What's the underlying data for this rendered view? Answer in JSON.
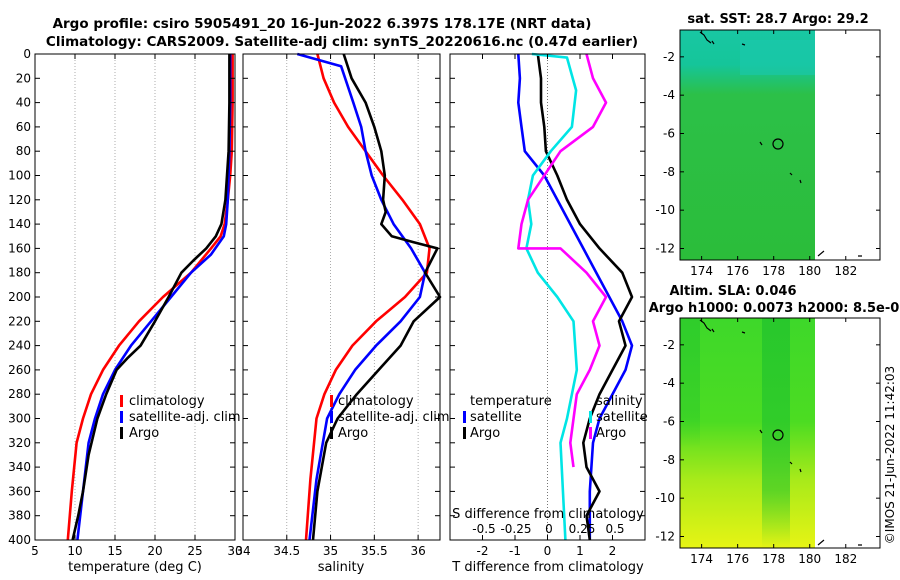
{
  "header": {
    "title_line1": "Argo profile: csiro 5905491_20 16-Jun-2022 6.397S 178.17E (NRT data)",
    "title_line2": "Climatology: CARS2009. Satellite-adj clim: synTS_20220616.nc (0.47d earlier)"
  },
  "chart_data": [
    {
      "id": "temperature",
      "type": "line",
      "xlabel": "temperature (deg C)",
      "ylabel": "",
      "xlim": [
        5,
        30
      ],
      "ylim": [
        400,
        0
      ],
      "xticks": [
        5,
        10,
        15,
        20,
        25,
        30
      ],
      "yticks": [
        0,
        20,
        40,
        60,
        80,
        100,
        120,
        140,
        160,
        180,
        200,
        220,
        240,
        260,
        280,
        300,
        320,
        340,
        360,
        380,
        400
      ],
      "grid": "vertical dotted",
      "legend_position": "lower-right",
      "series": [
        {
          "name": "climatology",
          "color": "#ff0000",
          "x": [
            29.7,
            29.7,
            29.6,
            29.4,
            29.1,
            28.7,
            28.2,
            27.0,
            24.5,
            21.0,
            18.0,
            15.5,
            13.5,
            12.0,
            11.0,
            10.2,
            9.6,
            9.1
          ],
          "y": [
            0,
            40,
            80,
            100,
            120,
            140,
            150,
            160,
            180,
            200,
            220,
            240,
            260,
            280,
            300,
            320,
            360,
            400
          ]
        },
        {
          "name": "satellite-adj. clim",
          "color": "#0000ff",
          "x": [
            29.4,
            29.4,
            29.3,
            29.2,
            29.1,
            28.9,
            28.6,
            27.0,
            24.5,
            22.0,
            19.5,
            17.0,
            15.0,
            13.5,
            12.5,
            11.7,
            11.0,
            10.3
          ],
          "y": [
            0,
            40,
            80,
            100,
            120,
            140,
            150,
            165,
            180,
            200,
            220,
            240,
            260,
            280,
            300,
            320,
            360,
            400
          ]
        },
        {
          "name": "Argo",
          "color": "#000000",
          "x": [
            29.3,
            29.3,
            29.2,
            29.0,
            28.8,
            28.3,
            27.6,
            26.4,
            24.8,
            23.3,
            21.7,
            20.0,
            18.2,
            16.6,
            15.2,
            13.9,
            12.8,
            11.7,
            11.0,
            10.4,
            9.7
          ],
          "y": [
            0,
            40,
            80,
            100,
            120,
            140,
            150,
            160,
            170,
            180,
            200,
            220,
            240,
            250,
            260,
            280,
            300,
            330,
            360,
            380,
            400
          ]
        }
      ]
    },
    {
      "id": "salinity",
      "type": "line",
      "xlabel": "salinity",
      "xlim": [
        34,
        36.25
      ],
      "ylim": [
        400,
        0
      ],
      "xticks": [
        34,
        34.5,
        35,
        35.5,
        36
      ],
      "grid": "vertical dotted",
      "legend_position": "lower-right",
      "series": [
        {
          "name": "climatology",
          "color": "#ff0000",
          "x": [
            34.85,
            34.92,
            35.04,
            35.2,
            35.4,
            35.6,
            35.82,
            36.02,
            36.13,
            36.1,
            35.85,
            35.52,
            35.25,
            35.06,
            34.93,
            34.84,
            34.77,
            34.72
          ],
          "y": [
            0,
            20,
            40,
            60,
            80,
            100,
            120,
            140,
            160,
            180,
            200,
            220,
            240,
            260,
            280,
            300,
            350,
            400
          ]
        },
        {
          "name": "satellite-adj. clim",
          "color": "#0000ff",
          "x": [
            34.62,
            35.12,
            35.26,
            35.35,
            35.4,
            35.47,
            35.58,
            35.72,
            35.92,
            36.08,
            36.02,
            35.8,
            35.52,
            35.28,
            35.1,
            34.96,
            34.84,
            34.76
          ],
          "y": [
            0,
            10,
            40,
            60,
            80,
            100,
            120,
            140,
            160,
            180,
            200,
            220,
            240,
            260,
            280,
            300,
            350,
            400
          ]
        },
        {
          "name": "Argo",
          "color": "#000000",
          "x": [
            35.15,
            35.24,
            35.4,
            35.5,
            35.58,
            35.62,
            35.6,
            35.63,
            35.58,
            35.7,
            35.95,
            36.22,
            36.08,
            36.25,
            35.95,
            35.8,
            35.55,
            35.3,
            35.08,
            34.95,
            34.85,
            34.8
          ],
          "y": [
            0,
            20,
            40,
            60,
            80,
            100,
            120,
            130,
            140,
            150,
            155,
            160,
            180,
            200,
            220,
            240,
            260,
            280,
            300,
            320,
            360,
            400
          ]
        }
      ]
    },
    {
      "id": "differences",
      "type": "line",
      "xlabel": "T difference from climatology",
      "xlabel_top": "S difference from climatology",
      "xlim": [
        -3,
        3
      ],
      "ylim": [
        400,
        0
      ],
      "xticks": [
        -2,
        -1,
        0,
        1,
        2
      ],
      "s_xticks_labels": [
        "-0.5",
        "-0.25",
        "0",
        "0.25",
        "0.5"
      ],
      "legend_temperature": {
        "title": "temperature",
        "entries": [
          "satellite",
          "Argo"
        ]
      },
      "legend_salinity": {
        "title": "salinity",
        "entries": [
          "satellite",
          "Argo"
        ]
      },
      "series": [
        {
          "name": "T satellite",
          "color": "#0000ff",
          "x": [
            -0.9,
            -0.85,
            -0.9,
            -0.8,
            -0.7,
            -0.1,
            0.3,
            0.7,
            1.1,
            1.5,
            1.9,
            2.3,
            2.6,
            2.4,
            2.0,
            1.6,
            1.4,
            1.3,
            1.3
          ],
          "y": [
            0,
            20,
            40,
            60,
            80,
            100,
            120,
            140,
            160,
            180,
            200,
            220,
            240,
            260,
            280,
            300,
            320,
            360,
            400
          ]
        },
        {
          "name": "T Argo",
          "color": "#000000",
          "x": [
            -0.3,
            -0.2,
            -0.2,
            -0.1,
            -0.05,
            0.3,
            0.6,
            1.0,
            1.6,
            2.3,
            2.6,
            2.2,
            2.4,
            2.0,
            1.6,
            1.3,
            1.1,
            1.2,
            1.6,
            1.2,
            1.3
          ],
          "y": [
            0,
            20,
            40,
            60,
            80,
            100,
            120,
            140,
            160,
            180,
            200,
            220,
            240,
            260,
            280,
            300,
            320,
            340,
            360,
            380,
            400
          ]
        },
        {
          "name": "S satellite",
          "color": "#00e5e5",
          "x": [
            -0.48,
            0.6,
            0.88,
            0.75,
            0.1,
            -0.45,
            -0.6,
            -0.5,
            -0.65,
            -0.3,
            0.3,
            0.8,
            0.9,
            0.75,
            0.6,
            0.4,
            0.55
          ],
          "y": [
            0,
            3,
            30,
            60,
            80,
            100,
            120,
            140,
            160,
            180,
            200,
            220,
            260,
            280,
            300,
            320,
            400
          ]
        },
        {
          "name": "S Argo",
          "color": "#ff00ff",
          "x": [
            1.2,
            1.4,
            1.8,
            1.4,
            0.4,
            -0.6,
            -0.8,
            -0.9,
            0.4,
            1.2,
            1.8,
            1.4,
            1.6,
            1.3,
            0.9,
            0.7,
            0.8
          ],
          "y": [
            0,
            20,
            40,
            60,
            80,
            120,
            140,
            160,
            160,
            180,
            200,
            220,
            240,
            260,
            280,
            320,
            340
          ]
        }
      ]
    },
    {
      "id": "sst-map",
      "type": "heatmap",
      "title": "sat. SST: 28.7 Argo: 29.2",
      "xticks": [
        174,
        176,
        178,
        180,
        182
      ],
      "yticks": [
        -2,
        -4,
        -6,
        -8,
        -10,
        -12
      ],
      "marker": {
        "lon": 178.17,
        "lat": -6.397
      }
    },
    {
      "id": "sla-map",
      "type": "heatmap",
      "title": "Altim. SLA: 0.046",
      "subtitle": "Argo h1000: 0.0073 h2000: 8.5e-0",
      "xticks": [
        174,
        176,
        178,
        180,
        182
      ],
      "yticks": [
        -2,
        -4,
        -6,
        -8,
        -10,
        -12
      ],
      "marker": {
        "lon": 178.17,
        "lat": -6.397
      }
    }
  ],
  "footer": {
    "stamp": "©IMOS 21-Jun-2022 11:42:03"
  },
  "colors": {
    "climatology": "#ff0000",
    "satellite": "#0000ff",
    "argo": "#000000",
    "s_satellite": "#00e5e5",
    "s_argo": "#ff00ff"
  }
}
